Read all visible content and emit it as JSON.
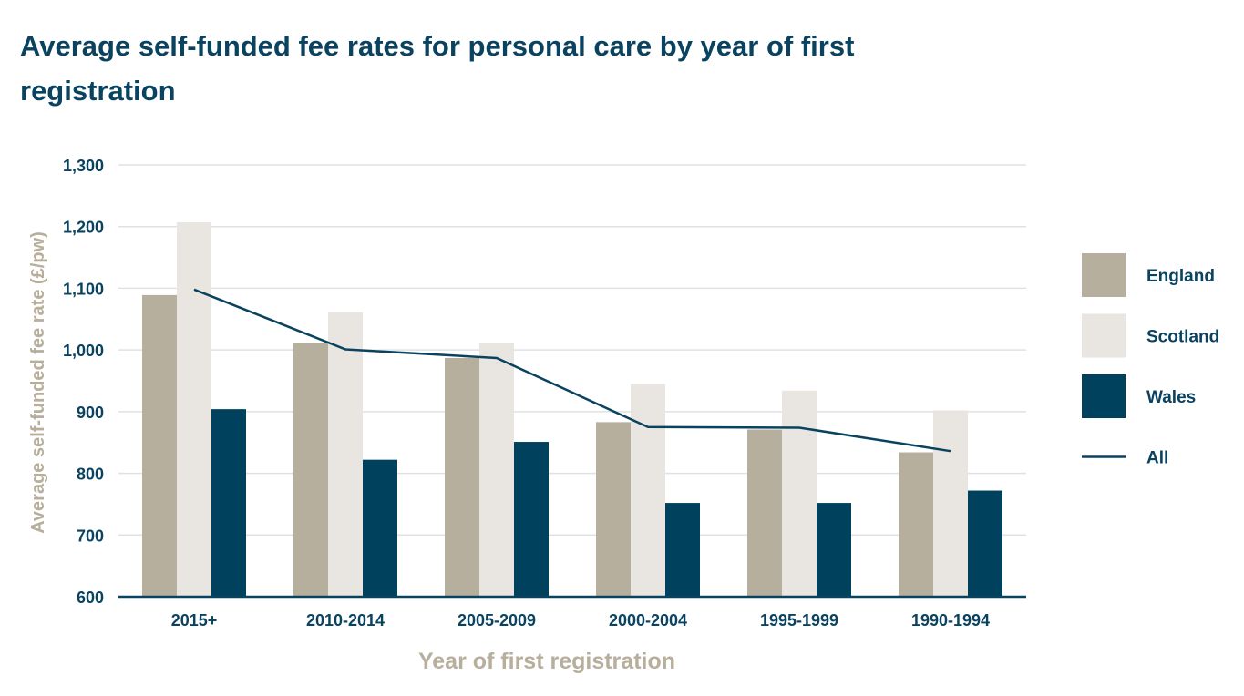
{
  "title": "Average self-funded fee rates for personal care by year of first registration",
  "chart_data": {
    "type": "bar",
    "title": "Average self-funded fee rates for personal care by year of first registration",
    "xlabel": "Year of first registration",
    "ylabel": "Average self-funded fee rate (£/pw)",
    "ylim": [
      600,
      1300
    ],
    "yticks": [
      600,
      700,
      800,
      900,
      1000,
      1100,
      1200,
      1300
    ],
    "ytick_labels": [
      "600",
      "700",
      "800",
      "900",
      "1,000",
      "1,100",
      "1,200",
      "1,300"
    ],
    "categories": [
      "2015+",
      "2010-2014",
      "2005-2009",
      "2000-2004",
      "1995-1999",
      "1990-1994"
    ],
    "series": [
      {
        "name": "England",
        "kind": "bar",
        "color": "#b6af9d",
        "values": [
          1089,
          1012,
          987,
          883,
          871,
          834
        ]
      },
      {
        "name": "Scotland",
        "kind": "bar",
        "color": "#e9e6e1",
        "values": [
          1207,
          1061,
          1012,
          945,
          934,
          902
        ]
      },
      {
        "name": "Wales",
        "kind": "bar",
        "color": "#00425d",
        "values": [
          904,
          822,
          851,
          752,
          752,
          772
        ]
      },
      {
        "name": "All",
        "kind": "line",
        "color": "#0a4360",
        "values": [
          1098,
          1001,
          987,
          875,
          874,
          836
        ]
      }
    ],
    "grid": true,
    "legend_position": "right"
  }
}
